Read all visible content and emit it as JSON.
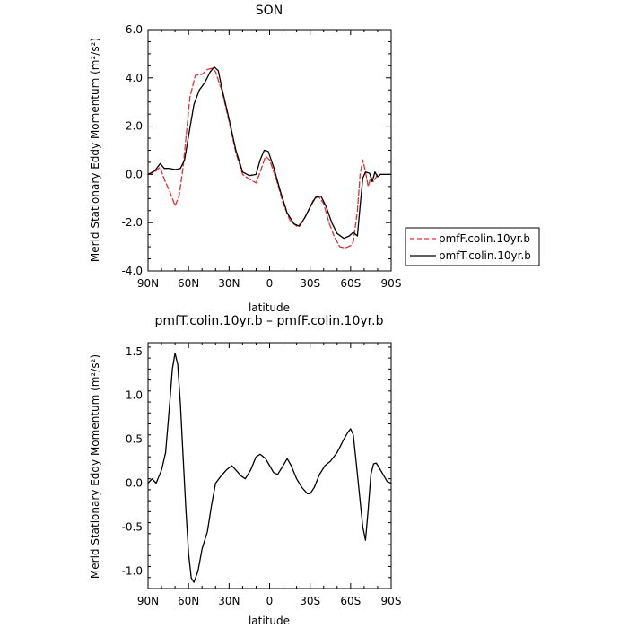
{
  "chart_data": [
    {
      "type": "line",
      "title": "SON",
      "xlabel": "latitude",
      "ylabel": "Merid Stationary Eddy Momentum  (m²/s²)",
      "xlim": [
        90,
        -90
      ],
      "ylim": [
        -4.0,
        6.0
      ],
      "x_ticks": [
        90,
        60,
        30,
        0,
        -30,
        -60,
        -90
      ],
      "x_tick_labels": [
        "90N",
        "60N",
        "30N",
        "0",
        "30S",
        "60S",
        "90S"
      ],
      "y_ticks": [
        -4,
        -2,
        0,
        2,
        4,
        6
      ],
      "y_tick_labels": [
        "-4.0",
        "-2.0",
        "0.0",
        "2.0",
        "4.0",
        "6.0"
      ],
      "grid": false,
      "legend_position": "right",
      "series": [
        {
          "name": "pmfF.colin.10yr.b",
          "color": "#e03030",
          "dash": "dashed",
          "points": [
            [
              90,
              0.0
            ],
            [
              85,
              0.1
            ],
            [
              81,
              0.3
            ],
            [
              78,
              -0.2
            ],
            [
              74,
              -0.7
            ],
            [
              70,
              -1.3
            ],
            [
              67,
              -0.9
            ],
            [
              64,
              0.3
            ],
            [
              62,
              1.5
            ],
            [
              59,
              3.2
            ],
            [
              55,
              4.1
            ],
            [
              50,
              4.15
            ],
            [
              46,
              4.35
            ],
            [
              42,
              4.4
            ],
            [
              40,
              4.25
            ],
            [
              35,
              3.4
            ],
            [
              30,
              2.2
            ],
            [
              25,
              0.9
            ],
            [
              20,
              0.0
            ],
            [
              15,
              -0.2
            ],
            [
              10,
              -0.35
            ],
            [
              7,
              0.1
            ],
            [
              3,
              0.75
            ],
            [
              0,
              0.6
            ],
            [
              -5,
              -0.2
            ],
            [
              -10,
              -1.2
            ],
            [
              -15,
              -1.9
            ],
            [
              -20,
              -2.15
            ],
            [
              -24,
              -2.0
            ],
            [
              -28,
              -1.6
            ],
            [
              -32,
              -1.1
            ],
            [
              -36,
              -0.9
            ],
            [
              -40,
              -1.2
            ],
            [
              -44,
              -2.0
            ],
            [
              -48,
              -2.6
            ],
            [
              -52,
              -3.0
            ],
            [
              -56,
              -3.05
            ],
            [
              -60,
              -2.95
            ],
            [
              -62,
              -2.8
            ],
            [
              -65,
              -1.5
            ],
            [
              -67,
              0.0
            ],
            [
              -69,
              0.6
            ],
            [
              -71,
              0.1
            ],
            [
              -73,
              -0.5
            ],
            [
              -75,
              -0.1
            ],
            [
              -77,
              -0.3
            ],
            [
              -80,
              0.0
            ],
            [
              -85,
              0.0
            ],
            [
              -90,
              0.0
            ]
          ]
        },
        {
          "name": "pmfT.colin.10yr.b",
          "color": "#000000",
          "dash": "solid",
          "points": [
            [
              90,
              0.0
            ],
            [
              85,
              0.15
            ],
            [
              81,
              0.45
            ],
            [
              78,
              0.25
            ],
            [
              74,
              0.25
            ],
            [
              70,
              0.2
            ],
            [
              66,
              0.25
            ],
            [
              63,
              0.6
            ],
            [
              60,
              1.6
            ],
            [
              56,
              2.9
            ],
            [
              52,
              3.5
            ],
            [
              48,
              3.8
            ],
            [
              44,
              4.25
            ],
            [
              41,
              4.45
            ],
            [
              38,
              4.3
            ],
            [
              35,
              3.5
            ],
            [
              30,
              2.3
            ],
            [
              25,
              1.0
            ],
            [
              20,
              0.1
            ],
            [
              15,
              -0.05
            ],
            [
              10,
              0.0
            ],
            [
              7,
              0.6
            ],
            [
              4,
              1.0
            ],
            [
              1,
              0.95
            ],
            [
              -3,
              0.3
            ],
            [
              -8,
              -0.7
            ],
            [
              -13,
              -1.6
            ],
            [
              -18,
              -2.05
            ],
            [
              -22,
              -2.15
            ],
            [
              -26,
              -1.8
            ],
            [
              -30,
              -1.35
            ],
            [
              -34,
              -0.95
            ],
            [
              -38,
              -0.9
            ],
            [
              -42,
              -1.35
            ],
            [
              -46,
              -2.0
            ],
            [
              -50,
              -2.45
            ],
            [
              -55,
              -2.65
            ],
            [
              -59,
              -2.55
            ],
            [
              -62,
              -2.4
            ],
            [
              -65,
              -2.55
            ],
            [
              -67,
              -1.3
            ],
            [
              -69,
              -0.15
            ],
            [
              -71,
              0.1
            ],
            [
              -74,
              0.05
            ],
            [
              -76,
              -0.3
            ],
            [
              -78,
              0.1
            ],
            [
              -80,
              -0.1
            ],
            [
              -82,
              0.0
            ],
            [
              -86,
              0.0
            ],
            [
              -90,
              0.0
            ]
          ]
        }
      ]
    },
    {
      "type": "line",
      "title": "pmfT.colin.10yr.b – pmfF.colin.10yr.b",
      "xlabel": "latitude",
      "ylabel": "Merid Stationary Eddy Momentum  (m²/s²)",
      "xlim": [
        90,
        -90
      ],
      "ylim": [
        -1.2,
        1.6
      ],
      "x_ticks": [
        90,
        60,
        30,
        0,
        -30,
        -60,
        -90
      ],
      "x_tick_labels": [
        "90N",
        "60N",
        "30N",
        "0",
        "30S",
        "60S",
        "90S"
      ],
      "y_ticks": [
        -1.0,
        -0.5,
        0.0,
        0.5,
        1.0,
        1.5
      ],
      "y_tick_labels": [
        "-1.0",
        "-0.5",
        "0.0",
        "0.5",
        "1.0",
        "1.5"
      ],
      "grid": false,
      "series": [
        {
          "color": "#000000",
          "dash": "solid",
          "points": [
            [
              90,
              0.0
            ],
            [
              87,
              0.05
            ],
            [
              84,
              0.0
            ],
            [
              80,
              0.15
            ],
            [
              77,
              0.35
            ],
            [
              74,
              0.9
            ],
            [
              72,
              1.3
            ],
            [
              70,
              1.48
            ],
            [
              68,
              1.35
            ],
            [
              66,
              0.9
            ],
            [
              64,
              0.3
            ],
            [
              62,
              -0.3
            ],
            [
              60,
              -0.8
            ],
            [
              58,
              -1.08
            ],
            [
              56,
              -1.13
            ],
            [
              53,
              -1.0
            ],
            [
              50,
              -0.75
            ],
            [
              46,
              -0.55
            ],
            [
              43,
              -0.25
            ],
            [
              40,
              0.0
            ],
            [
              36,
              0.08
            ],
            [
              32,
              0.15
            ],
            [
              28,
              0.2
            ],
            [
              25,
              0.15
            ],
            [
              21,
              0.08
            ],
            [
              18,
              0.05
            ],
            [
              14,
              0.15
            ],
            [
              10,
              0.3
            ],
            [
              7,
              0.33
            ],
            [
              3,
              0.28
            ],
            [
              0,
              0.2
            ],
            [
              -3,
              0.12
            ],
            [
              -6,
              0.1
            ],
            [
              -10,
              0.2
            ],
            [
              -13,
              0.28
            ],
            [
              -16,
              0.2
            ],
            [
              -20,
              0.05
            ],
            [
              -24,
              -0.05
            ],
            [
              -28,
              -0.12
            ],
            [
              -30,
              -0.12
            ],
            [
              -33,
              -0.05
            ],
            [
              -37,
              0.1
            ],
            [
              -41,
              0.2
            ],
            [
              -45,
              0.25
            ],
            [
              -50,
              0.35
            ],
            [
              -55,
              0.5
            ],
            [
              -58,
              0.58
            ],
            [
              -60,
              0.62
            ],
            [
              -62,
              0.55
            ],
            [
              -64,
              0.25
            ],
            [
              -67,
              -0.2
            ],
            [
              -69,
              -0.5
            ],
            [
              -71,
              -0.65
            ],
            [
              -73,
              -0.3
            ],
            [
              -75,
              0.1
            ],
            [
              -77,
              0.22
            ],
            [
              -79,
              0.23
            ],
            [
              -81,
              0.18
            ],
            [
              -84,
              0.1
            ],
            [
              -87,
              0.02
            ],
            [
              -90,
              0.0
            ]
          ]
        }
      ]
    }
  ]
}
